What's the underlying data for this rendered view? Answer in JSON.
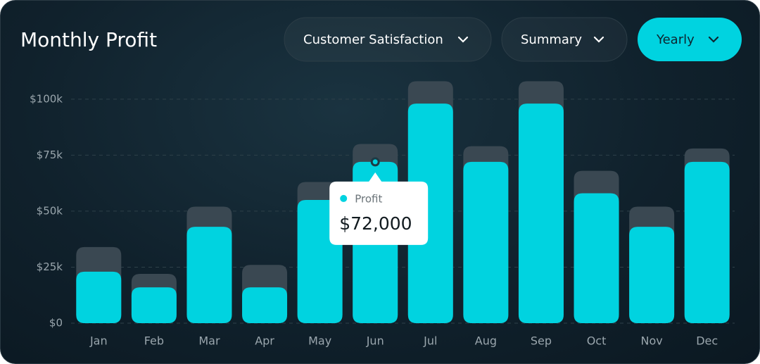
{
  "chart_data": {
    "type": "bar",
    "title": "Monthly Profit",
    "controls": [
      "Customer Satisfaction",
      "Summary",
      "Yearly"
    ],
    "categories": [
      "Jan",
      "Feb",
      "Mar",
      "Apr",
      "May",
      "Jun",
      "Jul",
      "Aug",
      "Sep",
      "Oct",
      "Nov",
      "Dec"
    ],
    "series": [
      {
        "name": "Profit",
        "color": "#00d3e0",
        "values": [
          23000,
          16000,
          43000,
          16000,
          55000,
          72000,
          98000,
          72000,
          98000,
          58000,
          43000,
          72000
        ]
      },
      {
        "color": "#3a4852",
        "values": [
          34000,
          22000,
          52000,
          26000,
          63000,
          80000,
          108000,
          79000,
          108000,
          68000,
          52000,
          78000
        ]
      }
    ],
    "ylim": [
      0,
      110000
    ],
    "yticks": [
      {
        "value": 0,
        "label": "$0"
      },
      {
        "value": 25000,
        "label": "$25k"
      },
      {
        "value": 50000,
        "label": "$50k"
      },
      {
        "value": 75000,
        "label": "$75k"
      },
      {
        "value": 100000,
        "label": "$100k"
      }
    ],
    "grid": true,
    "tooltip": {
      "series": 0,
      "index": 5,
      "value_label": "$72,000"
    }
  }
}
